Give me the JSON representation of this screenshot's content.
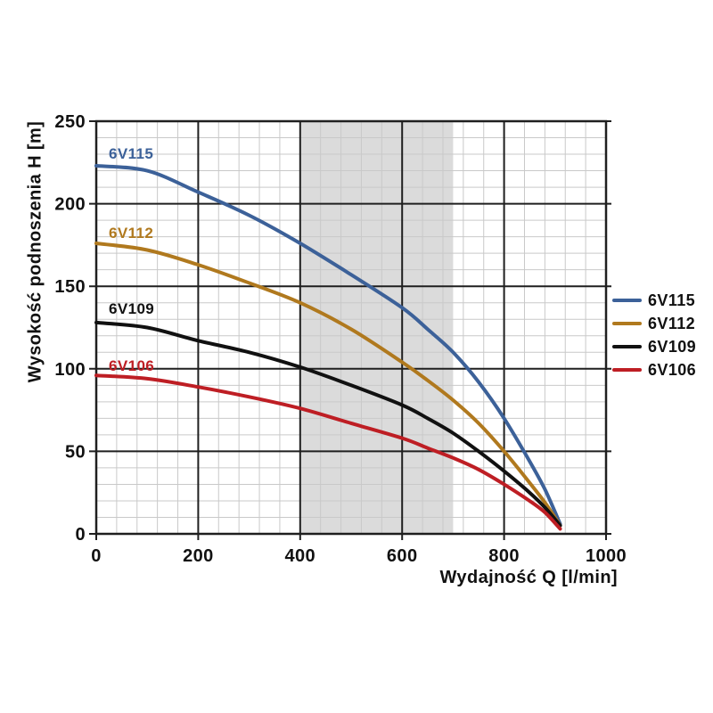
{
  "chart_data": {
    "type": "line",
    "title": "",
    "xlabel": "Wydajność Q [l/min]",
    "ylabel": "Wysokość podnoszenia H [m]",
    "xlim": [
      0,
      1000
    ],
    "ylim": [
      0,
      250
    ],
    "x_ticks": [
      0,
      200,
      400,
      600,
      800,
      1000
    ],
    "y_ticks": [
      0,
      50,
      100,
      150,
      200,
      250
    ],
    "x_minor_step": 40,
    "y_minor_step": 10,
    "grid": true,
    "legend_position": "right",
    "recommended_band": {
      "x_from": 400,
      "x_to": 700,
      "color": "#dbdbdb"
    },
    "colors": {
      "grid_minor": "#c9c9c9",
      "grid_major": "#1f1f1f",
      "axis": "#1f1f1f",
      "tick_label": "#111111"
    },
    "series": [
      {
        "name": "6V115",
        "color": "#3c6199",
        "points": [
          [
            0,
            223
          ],
          [
            100,
            220
          ],
          [
            200,
            207
          ],
          [
            300,
            193
          ],
          [
            400,
            176
          ],
          [
            500,
            157
          ],
          [
            600,
            137
          ],
          [
            650,
            124
          ],
          [
            700,
            110
          ],
          [
            750,
            92
          ],
          [
            800,
            70
          ],
          [
            850,
            44
          ],
          [
            880,
            27
          ],
          [
            910,
            6
          ]
        ]
      },
      {
        "name": "6V112",
        "color": "#b0791e",
        "points": [
          [
            0,
            176
          ],
          [
            100,
            172
          ],
          [
            200,
            163
          ],
          [
            300,
            152
          ],
          [
            400,
            140
          ],
          [
            500,
            124
          ],
          [
            600,
            104
          ],
          [
            650,
            93
          ],
          [
            700,
            81
          ],
          [
            750,
            67
          ],
          [
            800,
            50
          ],
          [
            850,
            31
          ],
          [
            880,
            19
          ],
          [
            910,
            5
          ]
        ]
      },
      {
        "name": "6V109",
        "color": "#111111",
        "points": [
          [
            0,
            128
          ],
          [
            100,
            125
          ],
          [
            200,
            117
          ],
          [
            300,
            110
          ],
          [
            400,
            101
          ],
          [
            500,
            90
          ],
          [
            600,
            78
          ],
          [
            650,
            70
          ],
          [
            700,
            61
          ],
          [
            750,
            50
          ],
          [
            800,
            38
          ],
          [
            850,
            25
          ],
          [
            880,
            16
          ],
          [
            910,
            5
          ]
        ]
      },
      {
        "name": "6V106",
        "color": "#be1e24",
        "points": [
          [
            0,
            96
          ],
          [
            100,
            94
          ],
          [
            200,
            89
          ],
          [
            300,
            83
          ],
          [
            400,
            76
          ],
          [
            500,
            67
          ],
          [
            600,
            58
          ],
          [
            650,
            52
          ],
          [
            700,
            46
          ],
          [
            750,
            39
          ],
          [
            800,
            30
          ],
          [
            850,
            20
          ],
          [
            880,
            13
          ],
          [
            910,
            3
          ]
        ]
      }
    ]
  }
}
